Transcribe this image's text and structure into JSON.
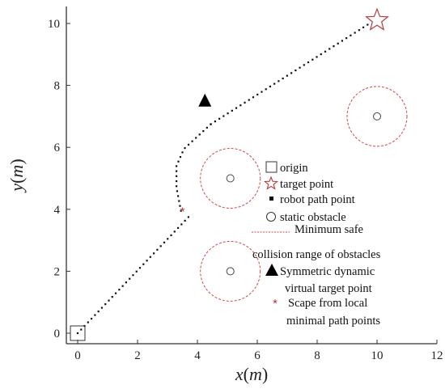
{
  "chart_data": {
    "type": "scatter",
    "xlim": [
      -0.5,
      12
    ],
    "ylim": [
      -0.5,
      10.5
    ],
    "xticks": [
      "0",
      "2",
      "4",
      "6",
      "8",
      "10",
      "12"
    ],
    "xtick_values": [
      0,
      2,
      4,
      6,
      8,
      10,
      12
    ],
    "yticks": [
      "0",
      "2",
      "4",
      "6",
      "8",
      "10"
    ],
    "ytick_values": [
      0,
      2,
      4,
      6,
      8,
      10
    ],
    "xlabel": {
      "var": "x",
      "unit": "m"
    },
    "ylabel": {
      "var": "y",
      "unit": "m"
    },
    "grid": false,
    "legend_position": "center-right",
    "colors": {
      "axis": "#333333",
      "path": "#111111",
      "obstacle": "#444444",
      "safe_range": "#cc4a4a",
      "target": "#b43c3c",
      "escape": "#c03030",
      "dynamic_target": "#000000"
    },
    "origin": {
      "x": 0,
      "y": 0
    },
    "target_point": {
      "x": 10,
      "y": 10.1
    },
    "robot_path": {
      "segment_1": [
        [
          0,
          0
        ],
        [
          3.8,
          3.85
        ]
      ],
      "segment_2": [
        [
          3.45,
          3.95
        ],
        [
          3.3,
          4.7
        ],
        [
          3.3,
          5.4
        ],
        [
          3.55,
          5.95
        ],
        [
          4.0,
          6.35
        ],
        [
          4.45,
          6.75
        ]
      ],
      "segment_3": [
        [
          4.45,
          6.75
        ],
        [
          9.75,
          10.0
        ]
      ]
    },
    "static_obstacles": [
      {
        "x": 5.1,
        "y": 5.0,
        "safe_radius": 1.0
      },
      {
        "x": 5.1,
        "y": 2.0,
        "safe_radius": 1.0
      },
      {
        "x": 10.0,
        "y": 7.0,
        "safe_radius": 1.0
      }
    ],
    "symmetric_dynamic_virtual_target_point": {
      "x": 4.25,
      "y": 7.5
    },
    "escape_point": {
      "x": 3.5,
      "y": 3.95
    },
    "legend": [
      {
        "symbol": "square",
        "label": "origin"
      },
      {
        "symbol": "star",
        "label": "target point"
      },
      {
        "symbol": "small-square",
        "label": "robot path point"
      },
      {
        "symbol": "circle",
        "label": "static obstacle"
      },
      {
        "symbol": "dashed-line",
        "label": "Minimum safe",
        "label_2": "collision range of obstacles"
      },
      {
        "symbol": "triangle",
        "label": "Symmetric dynamic",
        "label_2": "virtual target point"
      },
      {
        "symbol": "asterisk",
        "label": "Scape from local",
        "label_2": "minimal path points"
      }
    ]
  }
}
